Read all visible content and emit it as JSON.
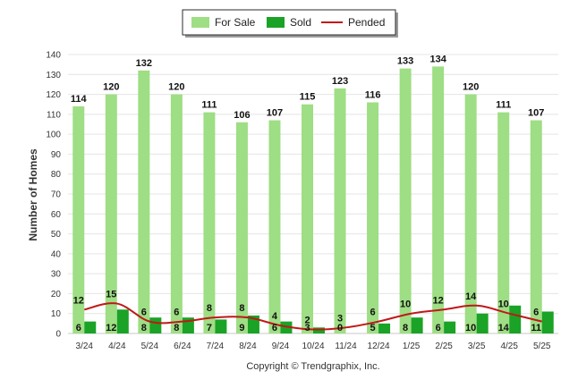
{
  "chart_data": {
    "type": "bar",
    "categories": [
      "3/24",
      "4/24",
      "5/24",
      "6/24",
      "7/24",
      "8/24",
      "9/24",
      "10/24",
      "11/24",
      "12/24",
      "1/25",
      "2/25",
      "3/25",
      "4/25",
      "5/25"
    ],
    "series": [
      {
        "name": "For Sale",
        "type": "bar",
        "color": "#9ede84",
        "values": [
          114,
          120,
          132,
          120,
          111,
          106,
          107,
          115,
          123,
          116,
          133,
          134,
          120,
          111,
          107
        ]
      },
      {
        "name": "Sold",
        "type": "bar",
        "color": "#1aa326",
        "values": [
          6,
          12,
          8,
          8,
          7,
          9,
          6,
          3,
          0,
          5,
          8,
          6,
          10,
          14,
          11
        ]
      },
      {
        "name": "Pended",
        "type": "line",
        "color": "#c01818",
        "values": [
          12,
          15,
          6,
          6,
          8,
          8,
          4,
          2,
          3,
          6,
          10,
          12,
          14,
          10,
          6
        ]
      }
    ],
    "ylabel": "Number of Homes",
    "ylim": [
      0,
      140
    ],
    "yticks": [
      0,
      10,
      20,
      30,
      40,
      50,
      60,
      70,
      80,
      90,
      100,
      110,
      120,
      130,
      140
    ],
    "grid": true,
    "legend_position": "top-center"
  },
  "legend": {
    "for_sale_label": "For Sale",
    "sold_label": "Sold",
    "pended_label": "Pended"
  },
  "footer": {
    "copyright": "Copyright © Trendgraphix, Inc."
  }
}
